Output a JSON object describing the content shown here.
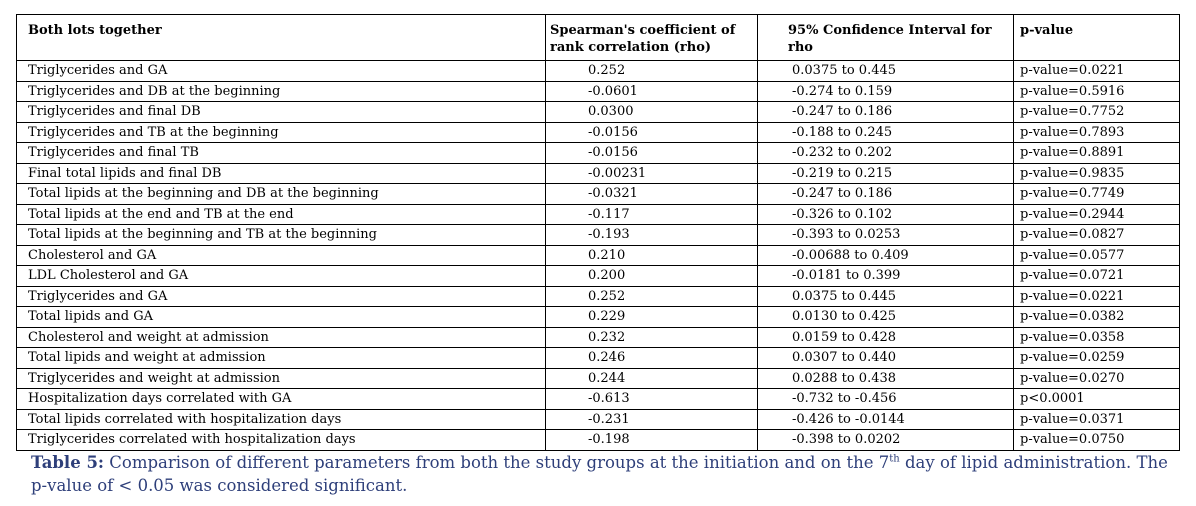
{
  "table": {
    "headers": [
      "Both lots together",
      "Spearman's coefficient of rank correlation (rho)",
      "95% Confidence Interval for rho",
      "p-value"
    ],
    "rows": [
      [
        "Triglycerides and GA",
        "0.252",
        "0.0375 to 0.445",
        "p-value=0.0221"
      ],
      [
        "Triglycerides and DB at the beginning",
        "-0.0601",
        "-0.274 to 0.159",
        "p-value=0.5916"
      ],
      [
        "Triglycerides and final DB",
        "0.0300",
        "-0.247 to 0.186",
        "p-value=0.7752"
      ],
      [
        "Triglycerides and TB at the beginning",
        "-0.0156",
        "-0.188 to 0.245",
        "p-value=0.7893"
      ],
      [
        "Triglycerides and final TB",
        "-0.0156",
        "-0.232 to 0.202",
        "p-value=0.8891"
      ],
      [
        "Final total lipids and final DB",
        "-0.00231",
        "-0.219 to 0.215",
        "p-value=0.9835"
      ],
      [
        "Total lipids at the beginning and DB at the beginning",
        "-0.0321",
        "-0.247 to 0.186",
        "p-value=0.7749"
      ],
      [
        "Total lipids at the end and TB at the end",
        "-0.117",
        "-0.326 to 0.102",
        "p-value=0.2944"
      ],
      [
        "Total lipids at the beginning and TB at the beginning",
        "-0.193",
        "-0.393 to 0.0253",
        "p-value=0.0827"
      ],
      [
        "Cholesterol and GA",
        "0.210",
        "-0.00688 to 0.409",
        "p-value=0.0577"
      ],
      [
        "LDL Cholesterol and GA",
        "0.200",
        "-0.0181 to 0.399",
        "p-value=0.0721"
      ],
      [
        "Triglycerides and GA",
        "0.252",
        "0.0375 to 0.445",
        "p-value=0.0221"
      ],
      [
        "Total lipids and GA",
        "0.229",
        "0.0130 to 0.425",
        "p-value=0.0382"
      ],
      [
        "Cholesterol and weight at admission",
        "0.232",
        "0.0159 to 0.428",
        "p-value=0.0358"
      ],
      [
        "Total lipids and weight at admission",
        "0.246",
        "0.0307 to 0.440",
        "p-value=0.0259"
      ],
      [
        "Triglycerides and weight at admission",
        "0.244",
        "0.0288 to 0.438",
        "p-value=0.0270"
      ],
      [
        "Hospitalization days correlated with GA",
        "-0.613",
        "-0.732 to -0.456",
        "p<0.0001"
      ],
      [
        "Total lipids correlated with hospitalization days",
        "-0.231",
        "-0.426 to -0.0144",
        "p-value=0.0371"
      ],
      [
        "Triglycerides correlated with hospitalization days",
        "-0.198",
        "-0.398 to 0.0202",
        "p-value=0.0750"
      ]
    ]
  },
  "caption": {
    "label": "Table 5:",
    "text_before_sup": " Comparison of different parameters from both the study groups at the initiation and on the 7",
    "sup": "th",
    "text_after_sup": " day of lipid administration. The p-value of < 0.05 was considered significant."
  },
  "colors": {
    "caption": "#2e3f7a",
    "border": "#000000"
  }
}
